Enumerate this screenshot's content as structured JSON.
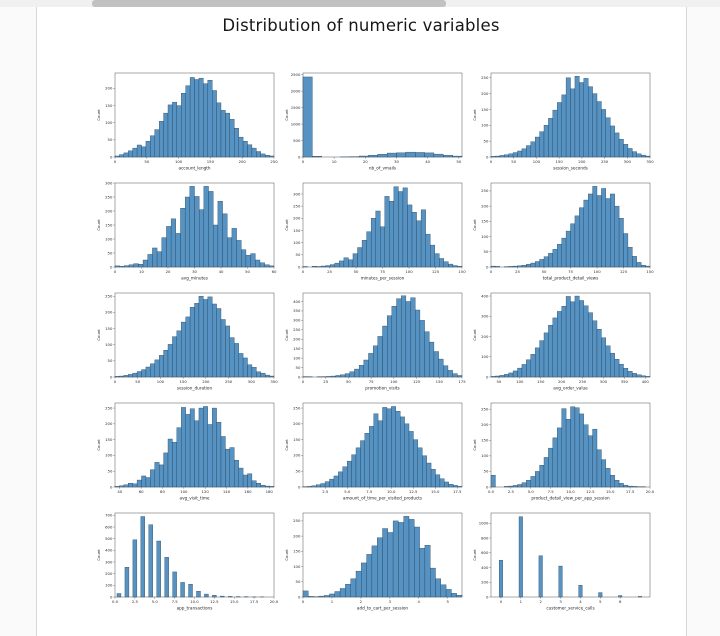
{
  "page": {
    "title": "Distribution of numeric variables"
  },
  "scrollbar": {
    "orientation": "horizontal",
    "thumb_position": "left-third"
  },
  "colors": {
    "bar_fill": "#5793c2",
    "bar_edge": "#1e3c56",
    "axis": "#555555",
    "tick_text": "#262626",
    "scrollbar_thumb": "#c1c1c1",
    "scrollbar_track": "#f0f0f0"
  },
  "chart_data": [
    {
      "type": "bar",
      "subtype": "histogram",
      "xlabel": "account_length",
      "ylabel": "Count",
      "ylim": 245,
      "y_ticks": [
        0,
        50,
        100,
        150,
        200
      ],
      "x_ticks": [
        "0",
        "50",
        "100",
        "150",
        "200",
        "250"
      ],
      "values": [
        3,
        7,
        12,
        18,
        26,
        35,
        30,
        46,
        62,
        80,
        104,
        128,
        152,
        160,
        150,
        186,
        208,
        232,
        226,
        230,
        214,
        224,
        194,
        158,
        136,
        128,
        110,
        84,
        58,
        46,
        36,
        26,
        16,
        9,
        5,
        3
      ]
    },
    {
      "type": "bar",
      "subtype": "histogram",
      "xlabel": "nb_of_vmails",
      "ylabel": "Count",
      "ylim": 2550,
      "y_ticks": [
        0,
        500,
        1000,
        1500,
        2000,
        2500
      ],
      "x_ticks": [
        "0",
        "10",
        "20",
        "30",
        "40",
        "50"
      ],
      "xtick_range": [
        0,
        0.98
      ],
      "values": [
        2430,
        25,
        0,
        0,
        4,
        8,
        30,
        55,
        85,
        120,
        128,
        148,
        138,
        125,
        88,
        55,
        28
      ]
    },
    {
      "type": "bar",
      "subtype": "histogram",
      "xlabel": "session_seconds",
      "ylabel": "Count",
      "ylim": 265,
      "y_ticks": [
        0,
        50,
        100,
        150,
        200,
        250
      ],
      "x_ticks": [
        "0",
        "50",
        "100",
        "150",
        "200",
        "250",
        "300",
        "350"
      ],
      "values": [
        2,
        3,
        5,
        7,
        10,
        14,
        19,
        26,
        36,
        48,
        63,
        80,
        100,
        122,
        148,
        172,
        196,
        250,
        215,
        255,
        235,
        248,
        222,
        200,
        175,
        150,
        124,
        98,
        76,
        56,
        40,
        27,
        17,
        10,
        6,
        3
      ]
    },
    {
      "type": "bar",
      "subtype": "histogram",
      "xlabel": "avg_minutes",
      "ylabel": "Count",
      "ylim": 300,
      "y_ticks": [
        0,
        50,
        100,
        150,
        200,
        250,
        300
      ],
      "x_ticks": [
        "0",
        "10",
        "20",
        "30",
        "40",
        "50",
        "60"
      ],
      "values": [
        4,
        3,
        5,
        8,
        12,
        10,
        25,
        45,
        68,
        55,
        105,
        145,
        172,
        120,
        210,
        250,
        288,
        252,
        205,
        288,
        270,
        150,
        235,
        190,
        105,
        138,
        95,
        62,
        42,
        48,
        25,
        15,
        8,
        4
      ]
    },
    {
      "type": "bar",
      "subtype": "histogram",
      "xlabel": "minutes_per_session",
      "ylabel": "Count",
      "ylim": 345,
      "y_ticks": [
        0,
        50,
        100,
        150,
        200,
        250,
        300
      ],
      "x_ticks": [
        "0",
        "25",
        "50",
        "75",
        "100",
        "125",
        "150"
      ],
      "values": [
        2,
        0,
        3,
        2,
        4,
        6,
        10,
        16,
        25,
        38,
        30,
        55,
        80,
        110,
        145,
        200,
        230,
        165,
        290,
        270,
        330,
        310,
        325,
        255,
        225,
        190,
        235,
        135,
        90,
        55,
        35,
        22,
        12,
        6,
        3
      ]
    },
    {
      "type": "bar",
      "subtype": "histogram",
      "xlabel": "total_product_detail_views",
      "ylabel": "Count",
      "ylim": 276,
      "y_ticks": [
        0,
        50,
        100,
        150,
        200,
        250
      ],
      "x_ticks": [
        "0",
        "25",
        "50",
        "75",
        "100",
        "125",
        "150"
      ],
      "values": [
        3,
        2,
        0,
        1,
        2,
        3,
        4,
        6,
        9,
        13,
        18,
        25,
        34,
        45,
        58,
        75,
        95,
        118,
        142,
        168,
        195,
        220,
        240,
        265,
        235,
        258,
        225,
        240,
        200,
        160,
        110,
        65,
        35,
        15,
        6,
        3
      ]
    },
    {
      "type": "bar",
      "subtype": "histogram",
      "xlabel": "session_duration",
      "ylabel": "Count",
      "ylim": 260,
      "y_ticks": [
        0,
        50,
        100,
        150,
        200,
        250
      ],
      "x_ticks": [
        "0",
        "50",
        "100",
        "150",
        "200",
        "250",
        "300",
        "350"
      ],
      "values": [
        2,
        3,
        5,
        8,
        12,
        17,
        23,
        31,
        41,
        53,
        67,
        83,
        101,
        125,
        143,
        170,
        186,
        216,
        228,
        250,
        240,
        248,
        226,
        212,
        178,
        158,
        122,
        104,
        73,
        59,
        38,
        30,
        16,
        12,
        6,
        3
      ]
    },
    {
      "type": "bar",
      "subtype": "histogram",
      "xlabel": "promotion_visits",
      "ylabel": "Count",
      "ylim": 445,
      "y_ticks": [
        0,
        50,
        100,
        150,
        200,
        250,
        300,
        350,
        400
      ],
      "x_ticks": [
        "0",
        "25",
        "50",
        "75",
        "100",
        "125",
        "150",
        "175"
      ],
      "values": [
        2,
        1,
        0,
        1,
        2,
        3,
        5,
        8,
        12,
        18,
        28,
        42,
        62,
        90,
        125,
        165,
        215,
        270,
        325,
        375,
        415,
        430,
        400,
        420,
        355,
        300,
        240,
        185,
        135,
        95,
        60,
        35,
        18,
        8
      ]
    },
    {
      "type": "bar",
      "subtype": "histogram",
      "xlabel": "avg_order_value",
      "ylabel": "Count",
      "ylim": 415,
      "y_ticks": [
        0,
        100,
        200,
        300,
        400
      ],
      "x_ticks": [
        "50",
        "100",
        "150",
        "200",
        "250",
        "300",
        "350",
        "400"
      ],
      "xtick_range": [
        0.05,
        0.97
      ],
      "values": [
        3,
        5,
        8,
        13,
        20,
        30,
        44,
        62,
        85,
        112,
        144,
        180,
        218,
        256,
        292,
        324,
        350,
        398,
        372,
        400,
        378,
        352,
        318,
        278,
        236,
        194,
        154,
        118,
        88,
        63,
        43,
        28,
        18,
        11,
        6,
        3
      ]
    },
    {
      "type": "bar",
      "subtype": "histogram",
      "xlabel": "avg_visit_time",
      "ylabel": "Count",
      "ylim": 266,
      "y_ticks": [
        0,
        50,
        100,
        150,
        200,
        250
      ],
      "x_ticks": [
        "40",
        "60",
        "80",
        "100",
        "120",
        "140",
        "160",
        "180"
      ],
      "xtick_range": [
        0.03,
        0.97
      ],
      "values": [
        2,
        4,
        7,
        12,
        10,
        22,
        35,
        30,
        55,
        78,
        70,
        108,
        152,
        142,
        188,
        252,
        230,
        248,
        210,
        250,
        255,
        198,
        250,
        205,
        160,
        120,
        125,
        85,
        60,
        38,
        42,
        20,
        12,
        6,
        3,
        2
      ]
    },
    {
      "type": "bar",
      "subtype": "histogram",
      "xlabel": "amount_of_time_per_visited_products",
      "ylabel": "Count",
      "ylim": 266,
      "y_ticks": [
        0,
        50,
        100,
        150,
        200,
        250
      ],
      "x_ticks": [
        "2.5",
        "5.0",
        "7.5",
        "10.0",
        "12.5",
        "15.0",
        "17.5"
      ],
      "xtick_range": [
        0.14,
        0.97
      ],
      "values": [
        1,
        2,
        4,
        7,
        11,
        17,
        25,
        35,
        48,
        64,
        82,
        102,
        124,
        147,
        170,
        192,
        232,
        210,
        252,
        248,
        255,
        240,
        222,
        200,
        176,
        150,
        124,
        99,
        76,
        56,
        39,
        26,
        16,
        9,
        5,
        2
      ]
    },
    {
      "type": "bar",
      "subtype": "histogram",
      "xlabel": "product_detail_view_per_app_session",
      "ylabel": "Count",
      "ylim": 270,
      "y_ticks": [
        0,
        50,
        100,
        150,
        200,
        250
      ],
      "x_ticks": [
        "0.0",
        "2.5",
        "5.0",
        "7.5",
        "10.0",
        "12.5",
        "15.0",
        "17.5",
        "20.0"
      ],
      "values": [
        38,
        0,
        0,
        2,
        3,
        5,
        8,
        14,
        22,
        34,
        50,
        70,
        95,
        125,
        158,
        190,
        252,
        218,
        258,
        255,
        235,
        200,
        165,
        186,
        120,
        88,
        60,
        38,
        22,
        12,
        6,
        3,
        2,
        1,
        1,
        0
      ]
    },
    {
      "type": "bar",
      "subtype": "histogram",
      "xlabel": "app_transactions",
      "ylabel": "Count",
      "ylim": 720,
      "y_ticks": [
        0,
        100,
        200,
        300,
        400,
        500,
        600,
        700
      ],
      "x_ticks": [
        "0.0",
        "2.5",
        "5.0",
        "7.5",
        "10.0",
        "12.5",
        "15.0",
        "17.5",
        "20.0"
      ],
      "bar_width_ratio": 0.5,
      "values": [
        30,
        255,
        490,
        690,
        620,
        480,
        340,
        215,
        125,
        110,
        50,
        25,
        15,
        8,
        5,
        3,
        2,
        1,
        1,
        0
      ]
    },
    {
      "type": "bar",
      "subtype": "histogram",
      "xlabel": "add_to_cart_per_session",
      "ylabel": "Count",
      "ylim": 276,
      "y_ticks": [
        0,
        50,
        100,
        150,
        200,
        250
      ],
      "x_ticks": [
        "0",
        "1",
        "2",
        "3",
        "4",
        "5"
      ],
      "xtick_range": [
        0,
        0.91
      ],
      "values": [
        20,
        2,
        1,
        3,
        5,
        10,
        18,
        28,
        42,
        60,
        85,
        112,
        140,
        168,
        195,
        225,
        212,
        250,
        245,
        265,
        255,
        230,
        160,
        170,
        95,
        60,
        40,
        25,
        12,
        6
      ]
    },
    {
      "type": "bar",
      "subtype": "histogram",
      "xlabel": "customer_service_calls",
      "ylabel": "Count",
      "ylim": 1140,
      "y_ticks": [
        0,
        200,
        400,
        600,
        800,
        1000
      ],
      "x_ticks": [
        "0",
        "1",
        "2",
        "3",
        "4",
        "5",
        "6"
      ],
      "bar_width_ratio": 0.18,
      "xtick_range": [
        0.0625,
        0.8125
      ],
      "values": [
        500,
        1090,
        560,
        420,
        160,
        60,
        20,
        8
      ]
    }
  ]
}
